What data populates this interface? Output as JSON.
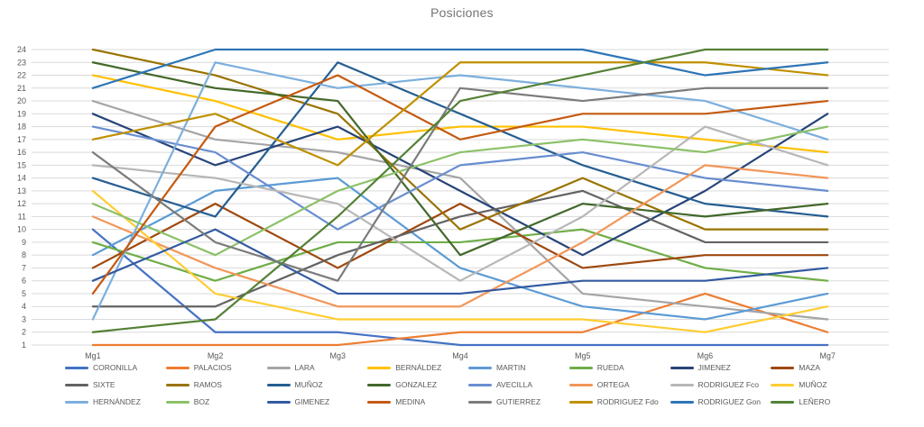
{
  "chart_data": {
    "type": "line",
    "title": "Posiciones",
    "categories": [
      "Mg1",
      "Mg2",
      "Mg3",
      "Mg4",
      "Mg5",
      "Mg6",
      "Mg7"
    ],
    "xlabel": "",
    "ylabel": "",
    "y_axis": {
      "min": 1,
      "max": 24,
      "step": 1
    },
    "grid": true,
    "legend_position": "bottom",
    "series": [
      {
        "name": "CORONILLA",
        "color": "#4472C4",
        "values": [
          10,
          2,
          2,
          1,
          1,
          1,
          1
        ]
      },
      {
        "name": "PALACIOS",
        "color": "#ED7D31",
        "values": [
          1,
          1,
          1,
          2,
          2,
          5,
          2
        ]
      },
      {
        "name": "LARA",
        "color": "#A5A5A5",
        "values": [
          20,
          17,
          16,
          14,
          5,
          4,
          3
        ]
      },
      {
        "name": "BERNÁLDEZ",
        "color": "#FFC000",
        "values": [
          22,
          20,
          17,
          18,
          18,
          17,
          16
        ]
      },
      {
        "name": "MARTIN",
        "color": "#5B9BD5",
        "values": [
          8,
          13,
          14,
          7,
          4,
          3,
          5
        ]
      },
      {
        "name": "RUEDA",
        "color": "#70AD47",
        "values": [
          9,
          6,
          9,
          9,
          10,
          7,
          6
        ]
      },
      {
        "name": "JIMENEZ",
        "color": "#264478",
        "values": [
          19,
          15,
          18,
          13,
          8,
          13,
          19
        ]
      },
      {
        "name": "MAZA",
        "color": "#9E480E",
        "values": [
          7,
          12,
          7,
          12,
          7,
          8,
          8
        ]
      },
      {
        "name": "SIXTE",
        "color": "#636363",
        "values": [
          4,
          4,
          8,
          11,
          13,
          9,
          9
        ]
      },
      {
        "name": "RAMOS",
        "color": "#997300",
        "values": [
          24,
          22,
          19,
          10,
          14,
          10,
          10
        ]
      },
      {
        "name": "MUÑOZ",
        "color": "#255E91",
        "values": [
          14,
          11,
          23,
          19,
          15,
          12,
          11
        ]
      },
      {
        "name": "GONZALEZ",
        "color": "#43682B",
        "values": [
          23,
          21,
          20,
          8,
          12,
          11,
          12
        ]
      },
      {
        "name": "AVECILLA",
        "color": "#698ED0",
        "values": [
          18,
          16,
          10,
          15,
          16,
          14,
          13
        ]
      },
      {
        "name": "ORTEGA",
        "color": "#F1975A",
        "values": [
          11,
          7,
          4,
          4,
          9,
          15,
          14
        ]
      },
      {
        "name": "RODRIGUEZ Fco",
        "color": "#B7B7B7",
        "values": [
          15,
          14,
          12,
          6,
          11,
          18,
          15
        ]
      },
      {
        "name": "MUÑOZ",
        "color": "#FFCD33",
        "values": [
          13,
          5,
          3,
          3,
          3,
          2,
          4
        ]
      },
      {
        "name": "HERNÁNDEZ",
        "color": "#7CAFDD",
        "values": [
          3,
          23,
          21,
          22,
          21,
          20,
          17
        ]
      },
      {
        "name": "BOZ",
        "color": "#8CC168",
        "values": [
          12,
          8,
          13,
          16,
          17,
          16,
          18
        ]
      },
      {
        "name": "GIMENEZ",
        "color": "#335AA1",
        "values": [
          6,
          10,
          5,
          5,
          6,
          6,
          7
        ]
      },
      {
        "name": "MEDINA",
        "color": "#C55A11",
        "values": [
          5,
          18,
          22,
          17,
          19,
          19,
          20
        ]
      },
      {
        "name": "GUTIERREZ",
        "color": "#7B7B7B",
        "values": [
          16,
          9,
          6,
          21,
          20,
          21,
          21
        ]
      },
      {
        "name": "RODRIGUEZ Fdo",
        "color": "#BF9000",
        "values": [
          17,
          19,
          15,
          23,
          23,
          23,
          22
        ]
      },
      {
        "name": "RODRIGUEZ Gon",
        "color": "#2E75B6",
        "values": [
          21,
          24,
          24,
          24,
          24,
          22,
          23
        ]
      },
      {
        "name": "LEÑERO",
        "color": "#538135",
        "values": [
          2,
          3,
          11,
          20,
          22,
          24,
          24
        ]
      }
    ]
  },
  "style": {
    "title_color": "#757575",
    "axis_text_color": "#595959",
    "gridline_color": "#D9D9D9",
    "line_width": 2.2
  }
}
